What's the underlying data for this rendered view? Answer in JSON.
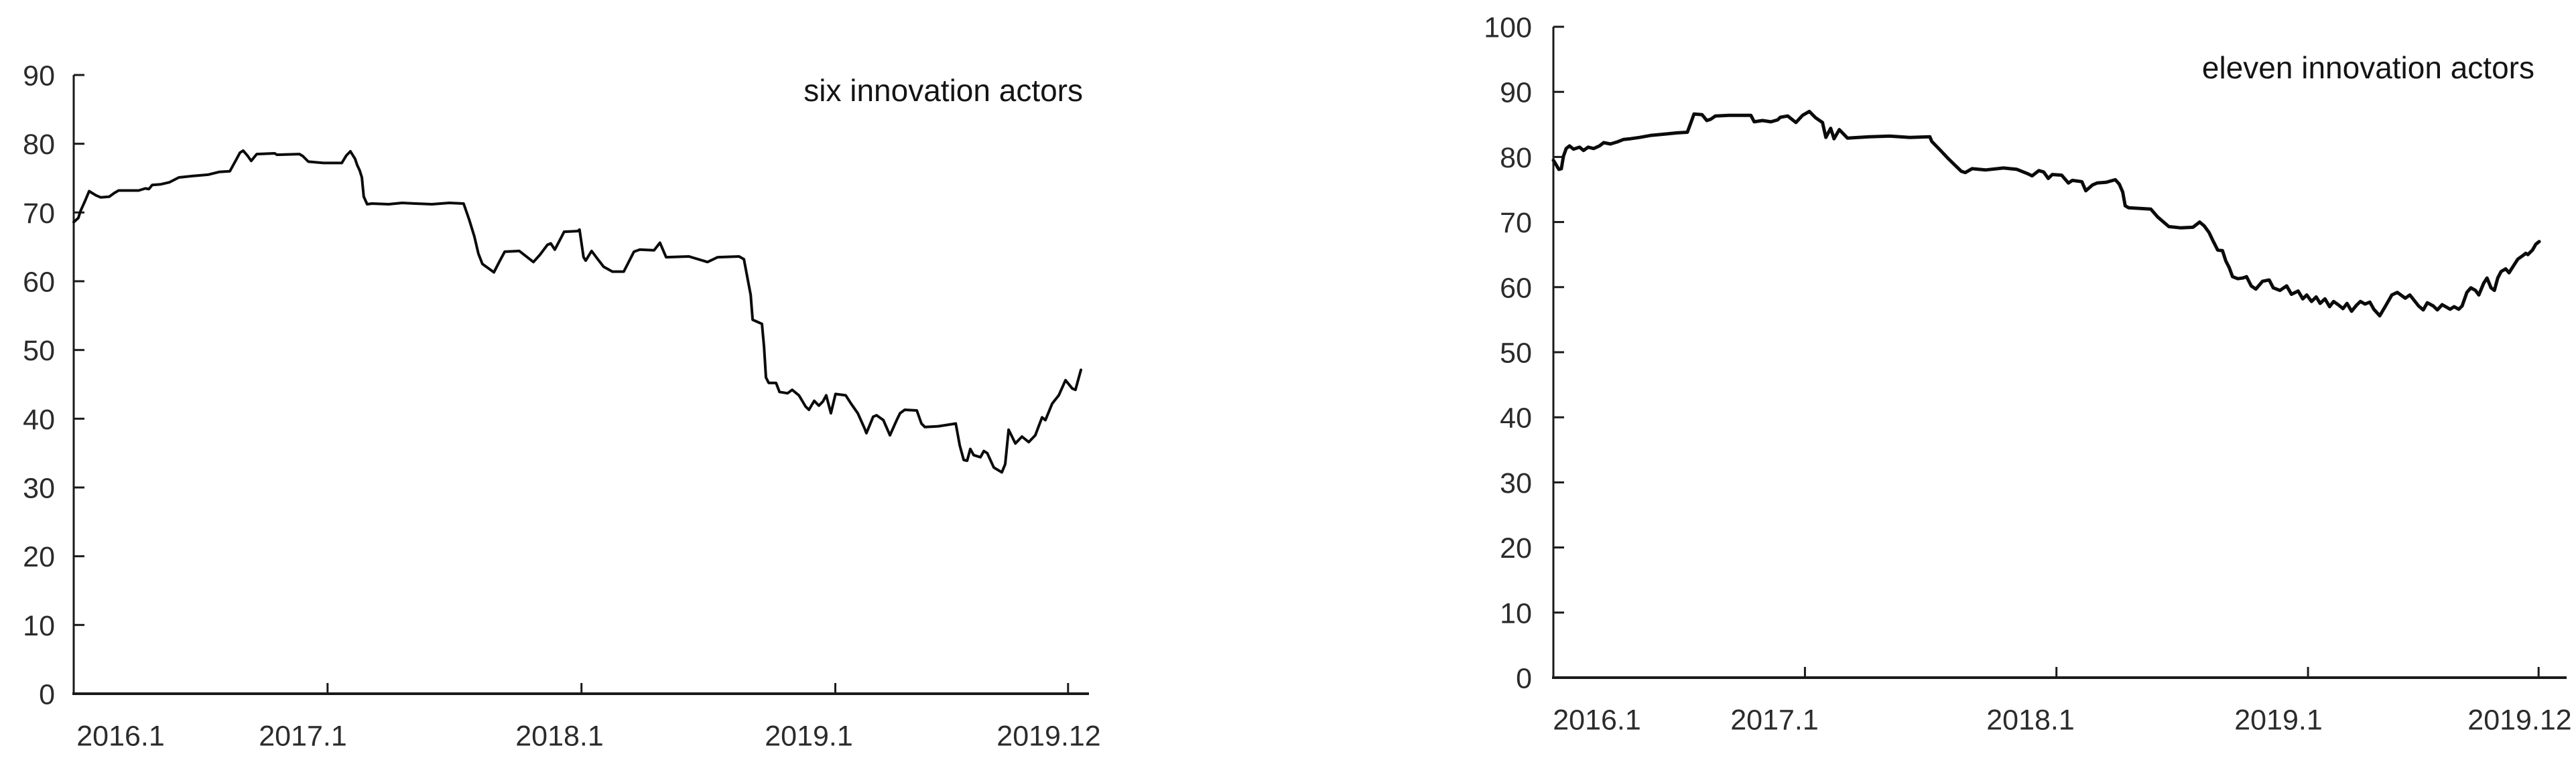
{
  "page": {
    "background_color": "#ffffff",
    "text_color": "#2b2b2b",
    "line_color": "#0b0b0b"
  },
  "chart_data": [
    {
      "type": "line",
      "title": "six innovation actors",
      "title_position": "top-right-inside-plot",
      "x_unit": "months since 2016.1",
      "x_tick_months": [
        0,
        12,
        24,
        36,
        47
      ],
      "x_tick_labels": [
        "2016.1",
        "2017.1",
        "2018.1",
        "2019.1",
        "2019.12"
      ],
      "ylim": [
        0,
        90
      ],
      "ytick_step": 10,
      "y_tick_labels": [
        "0",
        "10",
        "20",
        "30",
        "40",
        "50",
        "60",
        "70",
        "80",
        "90"
      ],
      "grid": false,
      "legend": "none",
      "line_color": "#0b0b0b",
      "points": [
        [
          0,
          68.6
        ],
        [
          0.22,
          69.2
        ],
        [
          0.32,
          70.2
        ],
        [
          0.54,
          71.7
        ],
        [
          0.73,
          73.1
        ],
        [
          1.05,
          72.5
        ],
        [
          1.27,
          72.2
        ],
        [
          1.68,
          72.3
        ],
        [
          1.9,
          72.8
        ],
        [
          2.12,
          73.2
        ],
        [
          3.07,
          73.2
        ],
        [
          3.39,
          73.5
        ],
        [
          3.55,
          73.4
        ],
        [
          3.71,
          74
        ],
        [
          4.12,
          74.1
        ],
        [
          4.53,
          74.4
        ],
        [
          4.97,
          75.1
        ],
        [
          5.61,
          75.3
        ],
        [
          6.34,
          75.5
        ],
        [
          6.87,
          75.9
        ],
        [
          7.38,
          76
        ],
        [
          7.7,
          77.8
        ],
        [
          7.86,
          78.7
        ],
        [
          8.01,
          79
        ],
        [
          8.23,
          78.2
        ],
        [
          8.39,
          77.5
        ],
        [
          8.65,
          78.5
        ],
        [
          9.5,
          78.6
        ],
        [
          9.6,
          78.4
        ],
        [
          10.67,
          78.5
        ],
        [
          10.83,
          78.2
        ],
        [
          11.09,
          77.4
        ],
        [
          11.81,
          77.2
        ],
        [
          12.67,
          77.2
        ],
        [
          12.89,
          78.3
        ],
        [
          13.08,
          78.9
        ],
        [
          13.3,
          77.8
        ],
        [
          13.4,
          76.9
        ],
        [
          13.52,
          76.1
        ],
        [
          13.62,
          75.1
        ],
        [
          13.71,
          72.3
        ],
        [
          13.87,
          71.2
        ],
        [
          14.1,
          71.3
        ],
        [
          14.89,
          71.2
        ],
        [
          15.52,
          71.4
        ],
        [
          16.15,
          71.3
        ],
        [
          16.94,
          71.2
        ],
        [
          17.74,
          71.4
        ],
        [
          18.43,
          71.3
        ],
        [
          18.69,
          69
        ],
        [
          18.94,
          66.5
        ],
        [
          19.13,
          64
        ],
        [
          19.32,
          62.5
        ],
        [
          19.64,
          61.8
        ],
        [
          19.86,
          61.3
        ],
        [
          20.11,
          62.8
        ],
        [
          20.37,
          64.3
        ],
        [
          21.06,
          64.4
        ],
        [
          21.73,
          62.8
        ],
        [
          22.05,
          63.9
        ],
        [
          22.39,
          65.3
        ],
        [
          22.55,
          65.5
        ],
        [
          22.74,
          64.6
        ],
        [
          23.03,
          66.3
        ],
        [
          23.18,
          67.2
        ],
        [
          23.82,
          67.3
        ],
        [
          23.91,
          67.5
        ],
        [
          24.1,
          63.5
        ],
        [
          24.2,
          63
        ],
        [
          24.48,
          64.4
        ],
        [
          24.77,
          63.2
        ],
        [
          25.05,
          62.1
        ],
        [
          25.46,
          61.4
        ],
        [
          26,
          61.4
        ],
        [
          26.48,
          64.3
        ],
        [
          26.76,
          64.6
        ],
        [
          27.43,
          64.5
        ],
        [
          27.71,
          65.6
        ],
        [
          28,
          63.5
        ],
        [
          29.08,
          63.6
        ],
        [
          29.96,
          62.8
        ],
        [
          30.44,
          63.5
        ],
        [
          31.45,
          63.6
        ],
        [
          31.68,
          63.2
        ],
        [
          32,
          58
        ],
        [
          32.09,
          54.4
        ],
        [
          32.53,
          53.8
        ],
        [
          32.63,
          50.5
        ],
        [
          32.72,
          46
        ],
        [
          32.85,
          45.2
        ],
        [
          33.2,
          45.2
        ],
        [
          33.36,
          43.9
        ],
        [
          33.74,
          43.7
        ],
        [
          33.96,
          44.2
        ],
        [
          34.28,
          43.4
        ],
        [
          34.59,
          41.8
        ],
        [
          34.75,
          41.3
        ],
        [
          35,
          42.6
        ],
        [
          35.22,
          41.9
        ],
        [
          35.41,
          42.5
        ],
        [
          35.57,
          43.4
        ],
        [
          35.79,
          40.8
        ],
        [
          36.01,
          43.6
        ],
        [
          36.49,
          43.4
        ],
        [
          36.74,
          42.2
        ],
        [
          37.06,
          40.8
        ],
        [
          37.38,
          38.6
        ],
        [
          37.47,
          37.9
        ],
        [
          37.79,
          40.3
        ],
        [
          37.95,
          40.5
        ],
        [
          38.27,
          39.8
        ],
        [
          38.58,
          37.6
        ],
        [
          38.9,
          39.8
        ],
        [
          39.06,
          40.8
        ],
        [
          39.28,
          41.3
        ],
        [
          39.85,
          41.2
        ],
        [
          40.07,
          39.3
        ],
        [
          40.23,
          38.8
        ],
        [
          40.86,
          38.9
        ],
        [
          41.5,
          39.2
        ],
        [
          41.69,
          39.3
        ],
        [
          41.88,
          36.1
        ],
        [
          42.07,
          34
        ],
        [
          42.23,
          33.9
        ],
        [
          42.38,
          35.6
        ],
        [
          42.54,
          34.7
        ],
        [
          42.86,
          34.4
        ],
        [
          43.02,
          35.3
        ],
        [
          43.18,
          35
        ],
        [
          43.49,
          32.9
        ],
        [
          43.87,
          32.2
        ],
        [
          44.03,
          33.4
        ],
        [
          44.19,
          38.4
        ],
        [
          44.51,
          36.4
        ],
        [
          44.82,
          37.4
        ],
        [
          45.14,
          36.6
        ],
        [
          45.45,
          37.6
        ],
        [
          45.77,
          40.2
        ],
        [
          45.93,
          39.8
        ],
        [
          46.25,
          42.2
        ],
        [
          46.56,
          43.4
        ],
        [
          46.88,
          45.6
        ],
        [
          47.2,
          44.4
        ],
        [
          47.35,
          44.2
        ],
        [
          47.61,
          47.1
        ]
      ]
    },
    {
      "type": "line",
      "title": "eleven innovation actors",
      "title_position": "top-right-inside-plot",
      "x_unit": "months since 2016.1",
      "x_tick_months": [
        0,
        12,
        24,
        36,
        47
      ],
      "x_tick_labels": [
        "2016.1",
        "2017.1",
        "2018.1",
        "2019.1",
        "2019.12"
      ],
      "ylim": [
        0,
        100
      ],
      "ytick_step": 10,
      "y_tick_labels": [
        "0",
        "10",
        "20",
        "30",
        "40",
        "50",
        "60",
        "70",
        "80",
        "90",
        "100"
      ],
      "grid": false,
      "legend": "none",
      "line_color": "#0b0b0b",
      "points": [
        [
          0,
          79.5
        ],
        [
          0.13,
          78.8
        ],
        [
          0.26,
          78.1
        ],
        [
          0.38,
          78.2
        ],
        [
          0.48,
          80.1
        ],
        [
          0.61,
          81.3
        ],
        [
          0.77,
          81.7
        ],
        [
          0.96,
          81.2
        ],
        [
          1.25,
          81.5
        ],
        [
          1.44,
          81
        ],
        [
          1.66,
          81.5
        ],
        [
          1.92,
          81.3
        ],
        [
          2.2,
          81.7
        ],
        [
          2.4,
          82.2
        ],
        [
          2.72,
          82
        ],
        [
          3.04,
          82.3
        ],
        [
          3.35,
          82.7
        ],
        [
          3.67,
          82.8
        ],
        [
          4.12,
          83
        ],
        [
          4.63,
          83.3
        ],
        [
          5.27,
          83.5
        ],
        [
          5.91,
          83.7
        ],
        [
          6.39,
          83.8
        ],
        [
          6.52,
          84.9
        ],
        [
          6.71,
          86.6
        ],
        [
          7.09,
          86.5
        ],
        [
          7.32,
          85.6
        ],
        [
          7.51,
          85.8
        ],
        [
          7.73,
          86.3
        ],
        [
          8.37,
          86.4
        ],
        [
          9.42,
          86.4
        ],
        [
          9.58,
          85.4
        ],
        [
          9.97,
          85.6
        ],
        [
          10.38,
          85.4
        ],
        [
          10.7,
          85.7
        ],
        [
          10.83,
          86.1
        ],
        [
          11.18,
          86.3
        ],
        [
          11.57,
          85.3
        ],
        [
          11.89,
          86.4
        ],
        [
          12.21,
          87
        ],
        [
          12.52,
          86
        ],
        [
          12.84,
          85.3
        ],
        [
          13,
          83
        ],
        [
          13.23,
          84.4
        ],
        [
          13.39,
          82.8
        ],
        [
          13.64,
          84.2
        ],
        [
          14.03,
          82.9
        ],
        [
          15.08,
          83.1
        ],
        [
          16.04,
          83.2
        ],
        [
          17,
          83
        ],
        [
          17.96,
          83.1
        ],
        [
          18.05,
          82.4
        ],
        [
          18.5,
          80.9
        ],
        [
          18.82,
          79.8
        ],
        [
          19.14,
          78.8
        ],
        [
          19.46,
          77.8
        ],
        [
          19.65,
          77.6
        ],
        [
          19.97,
          78.2
        ],
        [
          20.61,
          78
        ],
        [
          21.47,
          78.3
        ],
        [
          22.11,
          78.1
        ],
        [
          22.65,
          77.4
        ],
        [
          22.84,
          77.1
        ],
        [
          23.16,
          77.9
        ],
        [
          23.39,
          77.7
        ],
        [
          23.61,
          76.7
        ],
        [
          23.8,
          77.3
        ],
        [
          24.25,
          77.2
        ],
        [
          24.57,
          76
        ],
        [
          24.76,
          76.4
        ],
        [
          25.21,
          76.2
        ],
        [
          25.4,
          74.8
        ],
        [
          25.72,
          75.7
        ],
        [
          25.94,
          76
        ],
        [
          26.36,
          76.1
        ],
        [
          26.81,
          76.5
        ],
        [
          27,
          75.8
        ],
        [
          27.16,
          74.6
        ],
        [
          27.28,
          72.5
        ],
        [
          27.44,
          72.2
        ],
        [
          28.5,
          72
        ],
        [
          28.82,
          70.8
        ],
        [
          29.36,
          69.3
        ],
        [
          29.94,
          69.1
        ],
        [
          30.51,
          69.2
        ],
        [
          30.83,
          70
        ],
        [
          31.05,
          69.4
        ],
        [
          31.28,
          68.4
        ],
        [
          31.47,
          67.1
        ],
        [
          31.69,
          65.7
        ],
        [
          31.92,
          65.6
        ],
        [
          32.08,
          64
        ],
        [
          32.24,
          63
        ],
        [
          32.4,
          61.6
        ],
        [
          32.65,
          61.3
        ],
        [
          32.88,
          61.4
        ],
        [
          33.07,
          61.6
        ],
        [
          33.29,
          60.2
        ],
        [
          33.51,
          59.7
        ],
        [
          33.83,
          60.9
        ],
        [
          34.15,
          61.1
        ],
        [
          34.34,
          59.9
        ],
        [
          34.66,
          59.5
        ],
        [
          34.98,
          60.2
        ],
        [
          35.21,
          58.9
        ],
        [
          35.53,
          59.4
        ],
        [
          35.75,
          58.2
        ],
        [
          35.94,
          58.8
        ],
        [
          36.17,
          57.8
        ],
        [
          36.39,
          58.5
        ],
        [
          36.58,
          57.5
        ],
        [
          36.81,
          58.2
        ],
        [
          37.03,
          57
        ],
        [
          37.22,
          57.8
        ],
        [
          37.44,
          57.3
        ],
        [
          37.67,
          56.7
        ],
        [
          37.86,
          57.5
        ],
        [
          38.08,
          56.3
        ],
        [
          38.31,
          57.2
        ],
        [
          38.5,
          57.8
        ],
        [
          38.72,
          57.4
        ],
        [
          38.95,
          57.7
        ],
        [
          39.14,
          56.6
        ],
        [
          39.42,
          55.6
        ],
        [
          39.68,
          57
        ],
        [
          40,
          58.8
        ],
        [
          40.26,
          59.2
        ],
        [
          40.64,
          58.3
        ],
        [
          40.86,
          58.8
        ],
        [
          41.28,
          57.1
        ],
        [
          41.5,
          56.5
        ],
        [
          41.69,
          57.6
        ],
        [
          41.98,
          57.1
        ],
        [
          42.17,
          56.5
        ],
        [
          42.4,
          57.3
        ],
        [
          42.78,
          56.6
        ],
        [
          42.97,
          57
        ],
        [
          43.19,
          56.6
        ],
        [
          43.35,
          57.1
        ],
        [
          43.58,
          59.2
        ],
        [
          43.77,
          59.9
        ],
        [
          43.99,
          59.5
        ],
        [
          44.15,
          58.8
        ],
        [
          44.38,
          60.6
        ],
        [
          44.54,
          61.4
        ],
        [
          44.73,
          59.9
        ],
        [
          44.89,
          59.5
        ],
        [
          45.05,
          61.4
        ],
        [
          45.21,
          62.4
        ],
        [
          45.43,
          62.8
        ],
        [
          45.59,
          62.2
        ],
        [
          45.81,
          63.3
        ],
        [
          46.01,
          64.3
        ],
        [
          46.23,
          64.8
        ],
        [
          46.39,
          65.2
        ],
        [
          46.49,
          65
        ],
        [
          46.71,
          65.7
        ],
        [
          46.87,
          66.6
        ],
        [
          47.03,
          67
        ]
      ]
    }
  ]
}
